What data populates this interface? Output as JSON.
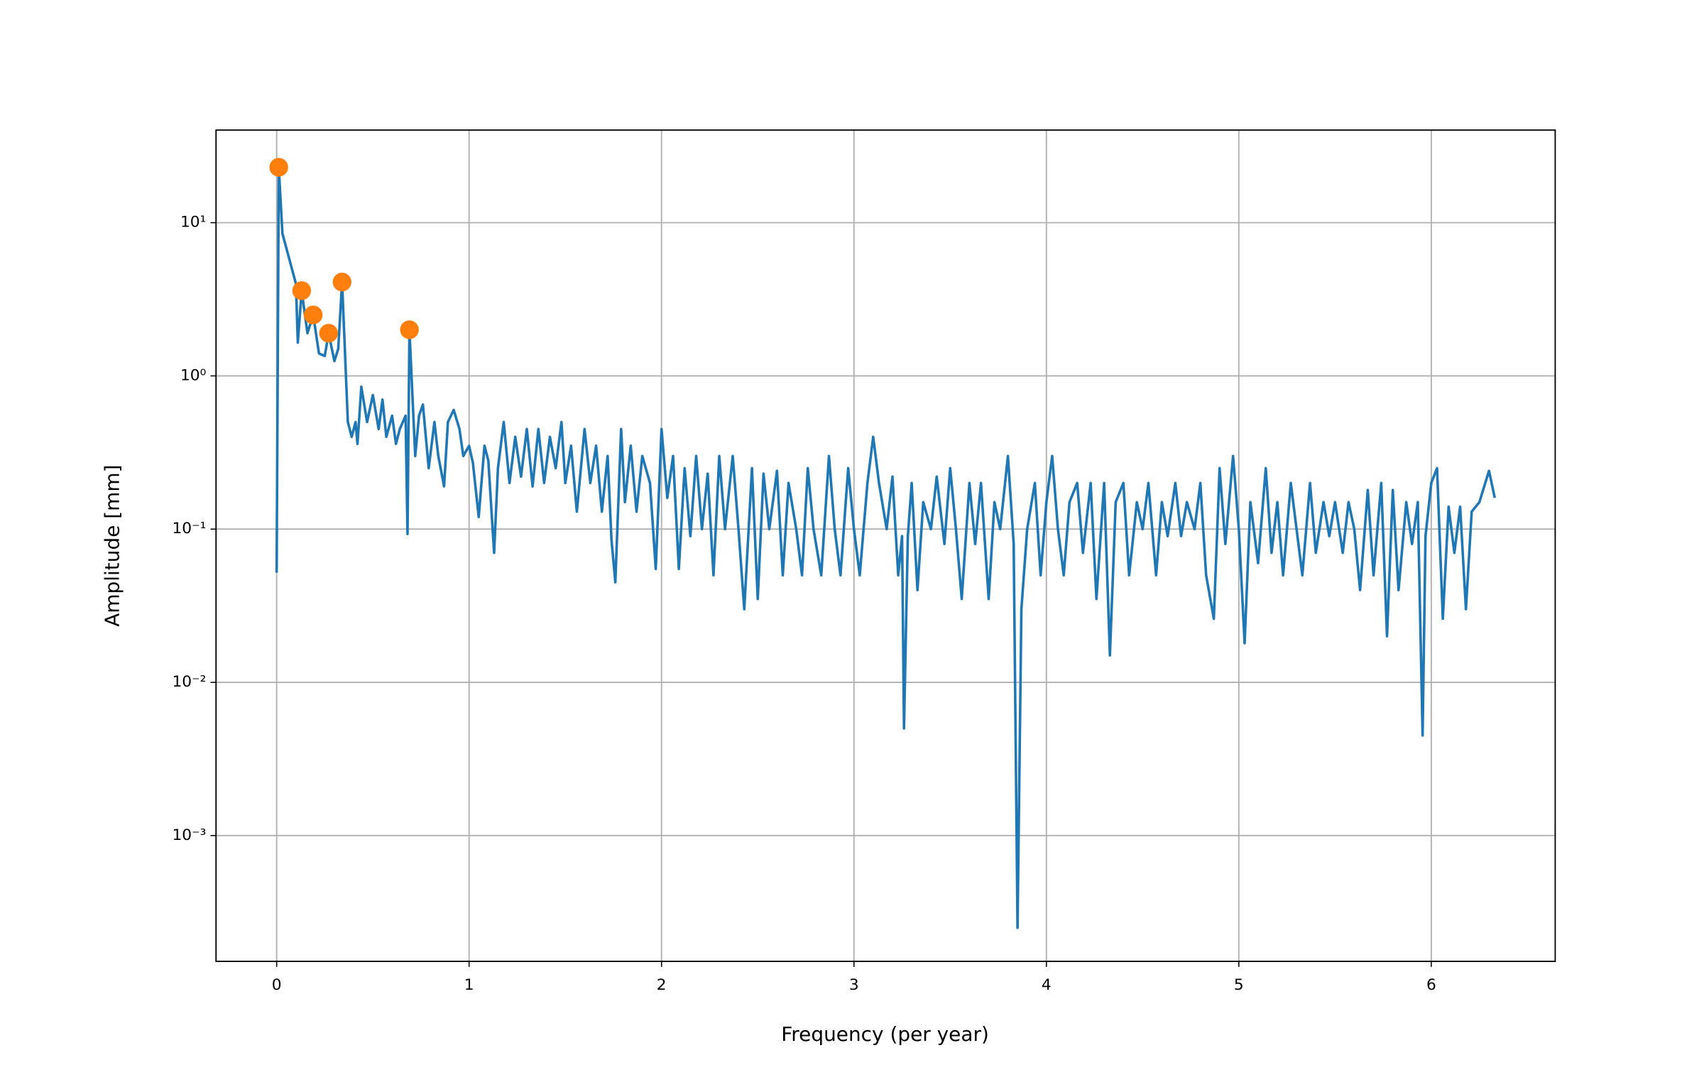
{
  "chart_data": {
    "type": "line",
    "xlabel": "Frequency (per year)",
    "ylabel": "Amplitude [mm]",
    "xlim": [
      -0.315,
      6.644
    ],
    "xticks": [
      0,
      1,
      2,
      3,
      4,
      5,
      6
    ],
    "ylim": [
      0.000151,
      40.2
    ],
    "yscale": "log",
    "yticks": [
      {
        "value": 0.001,
        "label": "10⁻³"
      },
      {
        "value": 0.01,
        "label": "10⁻²"
      },
      {
        "value": 0.1,
        "label": "10⁻¹"
      },
      {
        "value": 1,
        "label": "10⁰"
      },
      {
        "value": 10,
        "label": "10¹"
      }
    ],
    "grid": true,
    "series": [
      {
        "style": "line",
        "color": "#1f77b4",
        "x": [
          0,
          0.011,
          0.03,
          0.1,
          0.11,
          0.13,
          0.16,
          0.19,
          0.22,
          0.25,
          0.27,
          0.3,
          0.32,
          0.34,
          0.37,
          0.39,
          0.41,
          0.42,
          0.44,
          0.47,
          0.5,
          0.53,
          0.55,
          0.57,
          0.6,
          0.62,
          0.64,
          0.67,
          0.68,
          0.69,
          0.72,
          0.74,
          0.76,
          0.79,
          0.82,
          0.84,
          0.87,
          0.89,
          0.92,
          0.95,
          0.97,
          1.0,
          1.02,
          1.05,
          1.08,
          1.1,
          1.13,
          1.15,
          1.18,
          1.21,
          1.24,
          1.27,
          1.3,
          1.33,
          1.36,
          1.39,
          1.42,
          1.45,
          1.48,
          1.5,
          1.53,
          1.56,
          1.6,
          1.63,
          1.66,
          1.69,
          1.72,
          1.74,
          1.76,
          1.79,
          1.81,
          1.84,
          1.87,
          1.9,
          1.94,
          1.97,
          2.0,
          2.03,
          2.06,
          2.09,
          2.12,
          2.15,
          2.18,
          2.21,
          2.24,
          2.27,
          2.3,
          2.33,
          2.37,
          2.4,
          2.43,
          2.47,
          2.5,
          2.53,
          2.56,
          2.6,
          2.63,
          2.66,
          2.7,
          2.73,
          2.76,
          2.79,
          2.83,
          2.87,
          2.9,
          2.93,
          2.97,
          3.0,
          3.03,
          3.07,
          3.1,
          3.13,
          3.17,
          3.2,
          3.23,
          3.25,
          3.26,
          3.28,
          3.3,
          3.33,
          3.36,
          3.4,
          3.43,
          3.47,
          3.5,
          3.53,
          3.56,
          3.6,
          3.63,
          3.66,
          3.7,
          3.73,
          3.76,
          3.8,
          3.83,
          3.85,
          3.87,
          3.9,
          3.94,
          3.97,
          4.0,
          4.03,
          4.06,
          4.09,
          4.12,
          4.16,
          4.19,
          4.23,
          4.26,
          4.3,
          4.33,
          4.36,
          4.4,
          4.43,
          4.47,
          4.5,
          4.53,
          4.57,
          4.6,
          4.63,
          4.67,
          4.7,
          4.73,
          4.77,
          4.8,
          4.83,
          4.87,
          4.9,
          4.93,
          4.97,
          5.0,
          5.03,
          5.06,
          5.1,
          5.14,
          5.17,
          5.2,
          5.23,
          5.27,
          5.3,
          5.33,
          5.37,
          5.4,
          5.44,
          5.47,
          5.5,
          5.54,
          5.57,
          5.6,
          5.63,
          5.67,
          5.7,
          5.74,
          5.77,
          5.8,
          5.83,
          5.87,
          5.9,
          5.93,
          5.955,
          5.97,
          6.0,
          6.03,
          6.06,
          6.09,
          6.12,
          6.15,
          6.18,
          6.21,
          6.25,
          6.3,
          6.33
        ],
        "values": [
          0.052,
          23,
          8.5,
          4,
          1.65,
          3.6,
          1.9,
          2.5,
          1.4,
          1.35,
          1.9,
          1.25,
          1.5,
          4.1,
          0.5,
          0.4,
          0.5,
          0.36,
          0.85,
          0.5,
          0.75,
          0.45,
          0.7,
          0.4,
          0.55,
          0.36,
          0.45,
          0.55,
          0.093,
          2.0,
          0.3,
          0.55,
          0.65,
          0.25,
          0.5,
          0.3,
          0.19,
          0.5,
          0.6,
          0.45,
          0.3,
          0.35,
          0.27,
          0.12,
          0.35,
          0.28,
          0.07,
          0.25,
          0.5,
          0.2,
          0.4,
          0.22,
          0.45,
          0.19,
          0.45,
          0.2,
          0.4,
          0.25,
          0.5,
          0.2,
          0.35,
          0.13,
          0.45,
          0.2,
          0.35,
          0.13,
          0.3,
          0.085,
          0.045,
          0.45,
          0.15,
          0.35,
          0.13,
          0.3,
          0.2,
          0.055,
          0.45,
          0.16,
          0.3,
          0.055,
          0.25,
          0.09,
          0.3,
          0.1,
          0.23,
          0.05,
          0.3,
          0.1,
          0.3,
          0.1,
          0.03,
          0.25,
          0.035,
          0.23,
          0.1,
          0.24,
          0.05,
          0.2,
          0.1,
          0.05,
          0.25,
          0.1,
          0.05,
          0.3,
          0.1,
          0.05,
          0.25,
          0.1,
          0.05,
          0.2,
          0.4,
          0.2,
          0.1,
          0.22,
          0.05,
          0.09,
          0.005,
          0.09,
          0.2,
          0.04,
          0.15,
          0.1,
          0.22,
          0.08,
          0.25,
          0.1,
          0.035,
          0.2,
          0.08,
          0.2,
          0.035,
          0.15,
          0.1,
          0.3,
          0.08,
          0.00025,
          0.03,
          0.1,
          0.2,
          0.05,
          0.15,
          0.3,
          0.1,
          0.05,
          0.15,
          0.2,
          0.07,
          0.2,
          0.035,
          0.2,
          0.015,
          0.15,
          0.2,
          0.05,
          0.15,
          0.1,
          0.2,
          0.05,
          0.15,
          0.09,
          0.2,
          0.09,
          0.15,
          0.1,
          0.2,
          0.05,
          0.026,
          0.25,
          0.08,
          0.3,
          0.1,
          0.018,
          0.15,
          0.06,
          0.25,
          0.07,
          0.15,
          0.05,
          0.2,
          0.1,
          0.05,
          0.2,
          0.07,
          0.15,
          0.09,
          0.15,
          0.07,
          0.15,
          0.1,
          0.04,
          0.18,
          0.05,
          0.2,
          0.02,
          0.18,
          0.04,
          0.15,
          0.08,
          0.15,
          0.0045,
          0.09,
          0.2,
          0.25,
          0.026,
          0.14,
          0.07,
          0.14,
          0.03,
          0.13,
          0.15,
          0.24,
          0.16
        ]
      },
      {
        "style": "markers",
        "color": "#ff7f0e",
        "x": [
          0.011,
          0.13,
          0.19,
          0.27,
          0.34,
          0.69
        ],
        "values": [
          23,
          3.6,
          2.5,
          1.9,
          4.1,
          2.0
        ]
      }
    ]
  }
}
